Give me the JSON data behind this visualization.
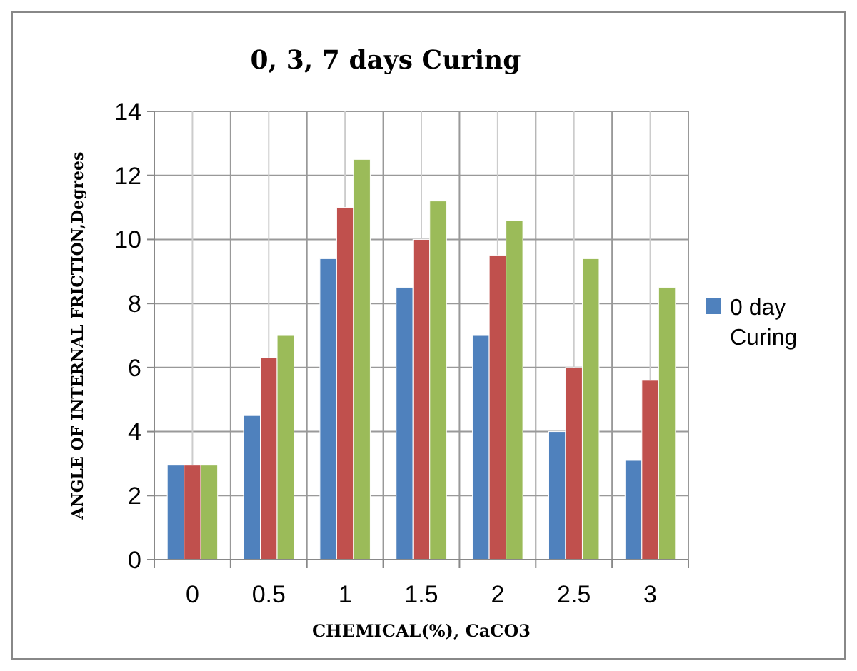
{
  "chart_data": {
    "type": "bar",
    "title": "0, 3, 7 days Curing",
    "xlabel": "CHEMICAL(%), CaCO3",
    "ylabel": "ANGLE OF INTERNAL FRICTION,Degrees",
    "categories": [
      "0",
      "0.5",
      "1",
      "1.5",
      "2",
      "2.5",
      "3"
    ],
    "series": [
      {
        "name": "0 day Curing",
        "color": "#4f81bd",
        "values": [
          2.95,
          4.5,
          9.4,
          8.5,
          7.0,
          4.0,
          3.1
        ]
      },
      {
        "color": "#c0504d",
        "values": [
          2.95,
          6.3,
          11.0,
          10.0,
          9.5,
          6.0,
          5.6
        ]
      },
      {
        "color": "#9bbb59",
        "values": [
          2.95,
          7.0,
          12.5,
          11.2,
          10.6,
          9.4,
          8.5
        ]
      }
    ],
    "ylim": [
      0,
      14
    ],
    "yticks": [
      0,
      2,
      4,
      6,
      8,
      10,
      12,
      14
    ],
    "grid": true,
    "legend": "right"
  }
}
